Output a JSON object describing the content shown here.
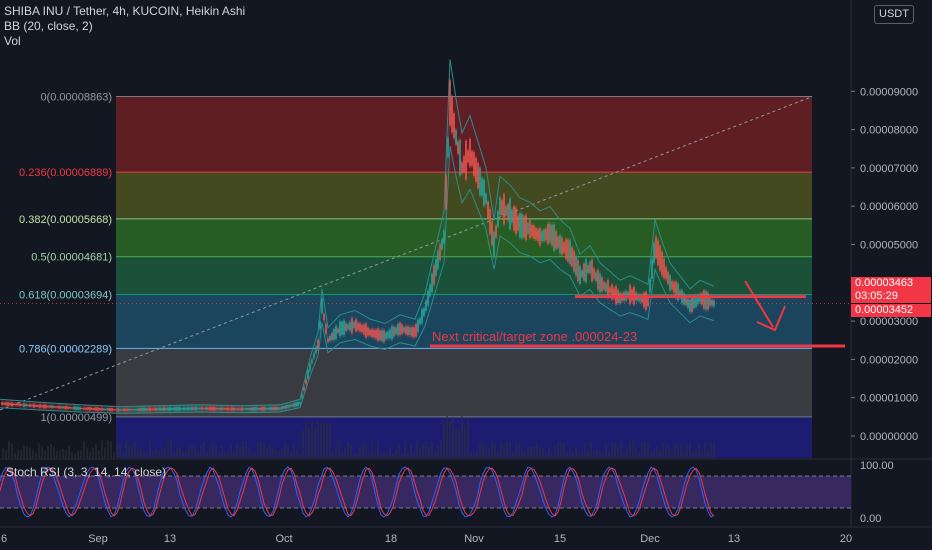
{
  "legend": {
    "symbol": "SHIBA INU / Tether, 4h, KUCOIN, Heikin Ashi",
    "bb": "BB (20, close, 2)",
    "vol": "Vol"
  },
  "currency_badge": "USDT",
  "price_tags": {
    "last": "0.00003463",
    "countdown": "03:05:29",
    "bb_value": "0.00003452"
  },
  "annotation": "Next critical/target zone .000024-23",
  "rsi_label": "Stoch RSI (3, 3, 14, 14, close)",
  "colors": {
    "background": "#131722",
    "up": "#26a69a",
    "down": "#ef5350",
    "annotation": "#f23645",
    "bb": "#2e8c8c",
    "rsi_k": "#2962ff",
    "rsi_d": "#f23645"
  },
  "chart_data": {
    "type": "candlestick",
    "title": "SHIBA INU / Tether, 4h, KUCOIN, Heikin Ashi",
    "y_axis_ticks": [
      "0.00009000",
      "0.00008000",
      "0.00007000",
      "0.00006000",
      "0.00005000",
      "0.00004000",
      "0.00003000",
      "0.00002000",
      "0.00001000",
      "0.00000000"
    ],
    "y_axis_values": [
      9e-05,
      8e-05,
      7e-05,
      6e-05,
      5e-05,
      4e-05,
      3e-05,
      2e-05,
      1e-05,
      0.0
    ],
    "x_axis_ticks": [
      "6",
      "Sep",
      "13",
      "Oct",
      "18",
      "Nov",
      "15",
      "Dec",
      "13",
      "20"
    ],
    "fib_levels": [
      {
        "label": "0(0.00008863)",
        "value": 8.863e-05,
        "line": "#787b86",
        "fill": "#6d1f24"
      },
      {
        "label": "0.236(0.00006889)",
        "value": 6.889e-05,
        "line": "#f23645",
        "fill": "#4c5320"
      },
      {
        "label": "0.382(0.00005668)",
        "value": 5.668e-05,
        "line": "#81c784",
        "fill": "#2b6a24"
      },
      {
        "label": "0.5(0.00004681)",
        "value": 4.681e-05,
        "line": "#4caf50",
        "fill": "#1d5c3c"
      },
      {
        "label": "0.618(0.00003694)",
        "value": 3.694e-05,
        "line": "#089981",
        "fill": "#1c4e66"
      },
      {
        "label": "0.786(0.00002289)",
        "value": 2.289e-05,
        "line": "#64b5f6",
        "fill": "#414247"
      },
      {
        "label": "1(0.00000499)",
        "value": 4.99e-06,
        "line": "#787b86",
        "fill": "#1e1f7e"
      }
    ],
    "fib_label_colors": [
      "#9598a1",
      "#f23645",
      "#c5e1a5",
      "#a5d6a7",
      "#80cbc4",
      "#90caf9",
      "#9598a1"
    ],
    "price_path": [
      [
        0,
        8.5e-06
      ],
      [
        40,
        7.8e-06
      ],
      [
        80,
        7.2e-06
      ],
      [
        120,
        6.8e-06
      ],
      [
        160,
        7e-06
      ],
      [
        200,
        7.2e-06
      ],
      [
        240,
        7e-06
      ],
      [
        280,
        7.2e-06
      ],
      [
        300,
        8.5e-06
      ],
      [
        310,
        1.8e-05
      ],
      [
        318,
        2.4e-05
      ],
      [
        322,
        3.4e-05
      ],
      [
        328,
        2.5e-05
      ],
      [
        340,
        2.8e-05
      ],
      [
        355,
        2.9e-05
      ],
      [
        370,
        2.7e-05
      ],
      [
        385,
        2.6e-05
      ],
      [
        400,
        2.8e-05
      ],
      [
        415,
        2.7e-05
      ],
      [
        425,
        3.3e-05
      ],
      [
        432,
        4e-05
      ],
      [
        438,
        4.6e-05
      ],
      [
        444,
        5.2e-05
      ],
      [
        450,
        8.7e-05
      ],
      [
        456,
        7.8e-05
      ],
      [
        462,
        7e-05
      ],
      [
        470,
        7.4e-05
      ],
      [
        478,
        6.8e-05
      ],
      [
        486,
        6.2e-05
      ],
      [
        494,
        5e-05
      ],
      [
        500,
        6e-05
      ],
      [
        510,
        5.8e-05
      ],
      [
        520,
        5.5e-05
      ],
      [
        530,
        5.4e-05
      ],
      [
        540,
        5.2e-05
      ],
      [
        550,
        5.3e-05
      ],
      [
        560,
        5e-05
      ],
      [
        570,
        4.8e-05
      ],
      [
        580,
        4.2e-05
      ],
      [
        590,
        4.4e-05
      ],
      [
        600,
        4e-05
      ],
      [
        610,
        3.8e-05
      ],
      [
        620,
        3.6e-05
      ],
      [
        630,
        3.7e-05
      ],
      [
        640,
        3.6e-05
      ],
      [
        648,
        3.5e-05
      ],
      [
        655,
        5e-05
      ],
      [
        662,
        4.5e-05
      ],
      [
        670,
        4e-05
      ],
      [
        680,
        3.7e-05
      ],
      [
        690,
        3.4e-05
      ],
      [
        700,
        3.6e-05
      ],
      [
        710,
        3.5e-05
      ],
      [
        714,
        3.46e-05
      ]
    ],
    "annotation_lines": [
      {
        "from": [
          575,
          3.64e-05
        ],
        "to": [
          806,
          3.64e-05
        ]
      },
      {
        "from": [
          430,
          2.35e-05
        ],
        "to": [
          845,
          2.35e-05
        ]
      }
    ],
    "rsi_axis_ticks": [
      "100.00",
      "0.00"
    ],
    "rsi_range": [
      0,
      100
    ]
  }
}
